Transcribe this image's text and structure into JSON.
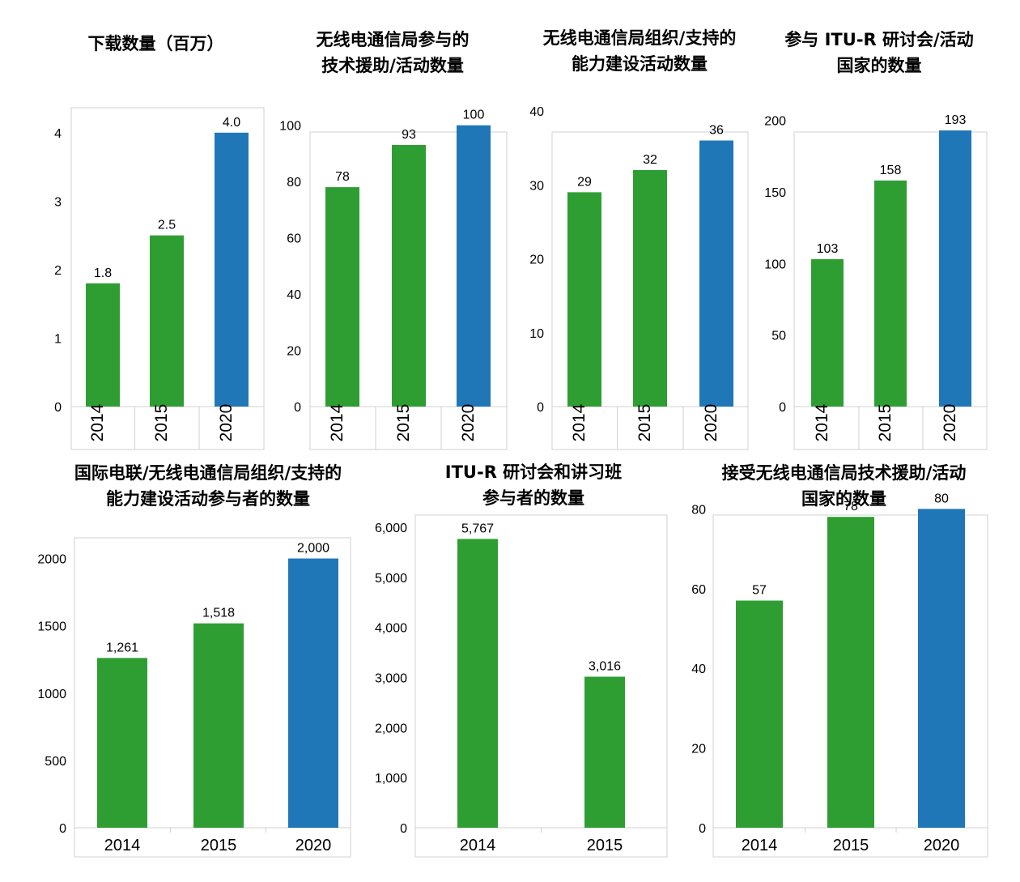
{
  "colors": {
    "green": "#2E9E33",
    "blue": "#2077B7",
    "frame": "#D2D2D2"
  },
  "chart_data": [
    {
      "id": "downloads",
      "type": "bar",
      "title": "下载数量（百万）",
      "categories": [
        "2014",
        "2015",
        "2020"
      ],
      "values": [
        1.8,
        2.5,
        4.0
      ],
      "value_labels": [
        "1.8",
        "2.5",
        "4.0"
      ],
      "bar_colors": [
        "green",
        "green",
        "blue"
      ],
      "ylim": [
        0,
        4.4
      ],
      "yticks": [
        0,
        1,
        2,
        3,
        4
      ],
      "ytick_labels": [
        "0",
        "1",
        "2",
        "3",
        "4"
      ],
      "xlabels_rotated": true,
      "grid": false
    },
    {
      "id": "ta-activities",
      "type": "bar",
      "title": "无线电通信局参与的\n技术援助/活动数量",
      "categories": [
        "2014",
        "2015",
        "2020"
      ],
      "values": [
        78,
        93,
        100
      ],
      "value_labels": [
        "78",
        "93",
        "100"
      ],
      "bar_colors": [
        "green",
        "green",
        "blue"
      ],
      "ylim": [
        0,
        112
      ],
      "yticks": [
        0,
        20,
        40,
        60,
        80,
        100
      ],
      "ytick_labels": [
        "0",
        "20",
        "40",
        "60",
        "80",
        "100"
      ],
      "xlabels_rotated": true,
      "grid": false
    },
    {
      "id": "capacity-activities",
      "type": "bar",
      "title": "无线电通信局组织/支持的\n能力建设活动数量",
      "categories": [
        "2014",
        "2015",
        "2020"
      ],
      "values": [
        29,
        32,
        36
      ],
      "value_labels": [
        "29",
        "32",
        "36"
      ],
      "bar_colors": [
        "green",
        "green",
        "blue"
      ],
      "ylim": [
        0,
        40
      ],
      "yticks": [
        0,
        10,
        20,
        30,
        40
      ],
      "ytick_labels": [
        "0",
        "10",
        "20",
        "30",
        "40"
      ],
      "xlabels_rotated": true,
      "grid": false
    },
    {
      "id": "itu-r-countries",
      "type": "bar",
      "title": "参与 ITU-R 研讨会/活动\n国家的数量",
      "categories": [
        "2014",
        "2015",
        "2020"
      ],
      "values": [
        103,
        158,
        193
      ],
      "value_labels": [
        "103",
        "158",
        "193"
      ],
      "bar_colors": [
        "green",
        "green",
        "blue"
      ],
      "ylim": [
        0,
        210
      ],
      "yticks": [
        0,
        50,
        100,
        150,
        200
      ],
      "ytick_labels": [
        "0",
        "50",
        "100",
        "150",
        "200"
      ],
      "xlabels_rotated": true,
      "grid": false
    },
    {
      "id": "capacity-participants",
      "type": "bar",
      "title": "国际电联/无线电通信局组织/支持的\n能力建设活动参与者的数量",
      "categories": [
        "2014",
        "2015",
        "2020"
      ],
      "values": [
        1261,
        1518,
        2000
      ],
      "value_labels": [
        "1,261",
        "1,518",
        "2,000"
      ],
      "bar_colors": [
        "green",
        "green",
        "blue"
      ],
      "ylim": [
        0,
        2250
      ],
      "yticks": [
        0,
        500,
        1000,
        1500,
        2000
      ],
      "ytick_labels": [
        "0",
        "500",
        "1000",
        "1500",
        "2000"
      ],
      "xlabels_rotated": false,
      "grid": false
    },
    {
      "id": "seminar-participants",
      "type": "bar",
      "title": "ITU-R 研讨会和讲习班\n参与者的数量",
      "categories": [
        "2014",
        "2015"
      ],
      "values": [
        5767,
        3016
      ],
      "value_labels": [
        "5,767",
        "3,016"
      ],
      "bar_colors": [
        "green",
        "green"
      ],
      "ylim": [
        0,
        6000
      ],
      "yticks": [
        0,
        1000,
        2000,
        3000,
        4000,
        5000,
        6000
      ],
      "ytick_labels": [
        "0",
        "1,000",
        "2,000",
        "3,000",
        "4,000",
        "5,000",
        "6,000"
      ],
      "xlabels_rotated": false,
      "grid": false
    },
    {
      "id": "ta-countries",
      "type": "bar",
      "title": "接受无线电通信局技术援助/活动\n国家的数量",
      "categories": [
        "2014",
        "2015",
        "2020"
      ],
      "values": [
        57,
        78,
        80
      ],
      "value_labels": [
        "57",
        "78",
        "80"
      ],
      "bar_colors": [
        "green",
        "green",
        "blue"
      ],
      "ylim": [
        0,
        88
      ],
      "yticks": [
        0,
        20,
        40,
        60,
        80
      ],
      "ytick_labels": [
        "0",
        "20",
        "40",
        "60",
        "80"
      ],
      "xlabels_rotated": false,
      "grid": false
    }
  ]
}
